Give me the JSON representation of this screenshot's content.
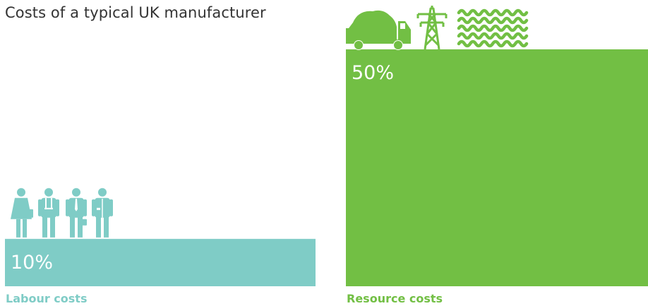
{
  "chart_data": {
    "type": "bar",
    "title": "Costs of a typical UK manufacturer",
    "categories": [
      "Labour costs",
      "Resource costs"
    ],
    "values": [
      10,
      50
    ],
    "value_labels": [
      "10%",
      "50%"
    ],
    "unit": "%",
    "ylim": [
      0,
      50
    ],
    "grid": false,
    "legend": "none",
    "icons": [
      [
        "woman-worker-icon",
        "man-worker-icon",
        "businessman-icon",
        "lab-coat-worker-icon"
      ],
      [
        "dump-truck-icon",
        "power-pylon-icon",
        "water-waves-icon"
      ]
    ]
  },
  "colors": {
    "labour": "#7fccc6",
    "resource": "#72bf44",
    "title": "#333333"
  }
}
